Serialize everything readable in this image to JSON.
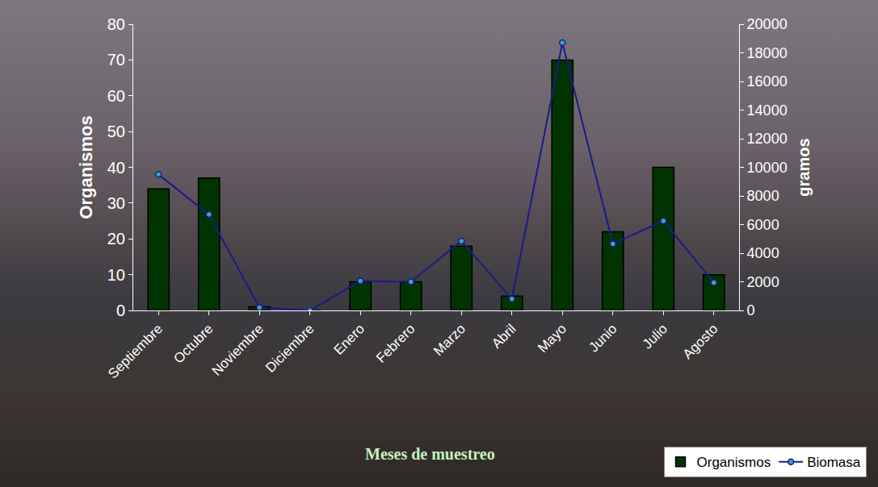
{
  "chart_data": {
    "type": "bar",
    "x_label": "Meses de muestreo",
    "y_label": "Organismos",
    "y2_label": "gramos",
    "categories": [
      "Septiembre",
      "Octubre",
      "Noviembre",
      "Diciembre",
      "Enero",
      "Febrero",
      "Marzo",
      "Abril",
      "Mayo",
      "Junio",
      "Julio",
      "Agosto"
    ],
    "series": [
      {
        "name": "Organismos",
        "type": "bar",
        "color": "#003300",
        "values": [
          34,
          37,
          1,
          0,
          8,
          8,
          18,
          4,
          70,
          22,
          40,
          10
        ]
      },
      {
        "name": "Biomasa",
        "type": "line",
        "color": "#1a1a8c",
        "marker": "circle",
        "axis": "y2",
        "values": [
          9500,
          6700,
          200,
          0,
          2050,
          2000,
          4850,
          800,
          18700,
          4650,
          6250,
          1950
        ]
      }
    ],
    "ylim": [
      0,
      80
    ],
    "yticks": [
      0,
      10,
      20,
      30,
      40,
      50,
      60,
      70,
      80
    ],
    "y2lim": [
      0,
      20000
    ],
    "y2ticks": [
      0,
      2000,
      4000,
      6000,
      8000,
      10000,
      12000,
      14000,
      16000,
      18000,
      20000
    ],
    "grid": false,
    "legend": "bottom right"
  }
}
